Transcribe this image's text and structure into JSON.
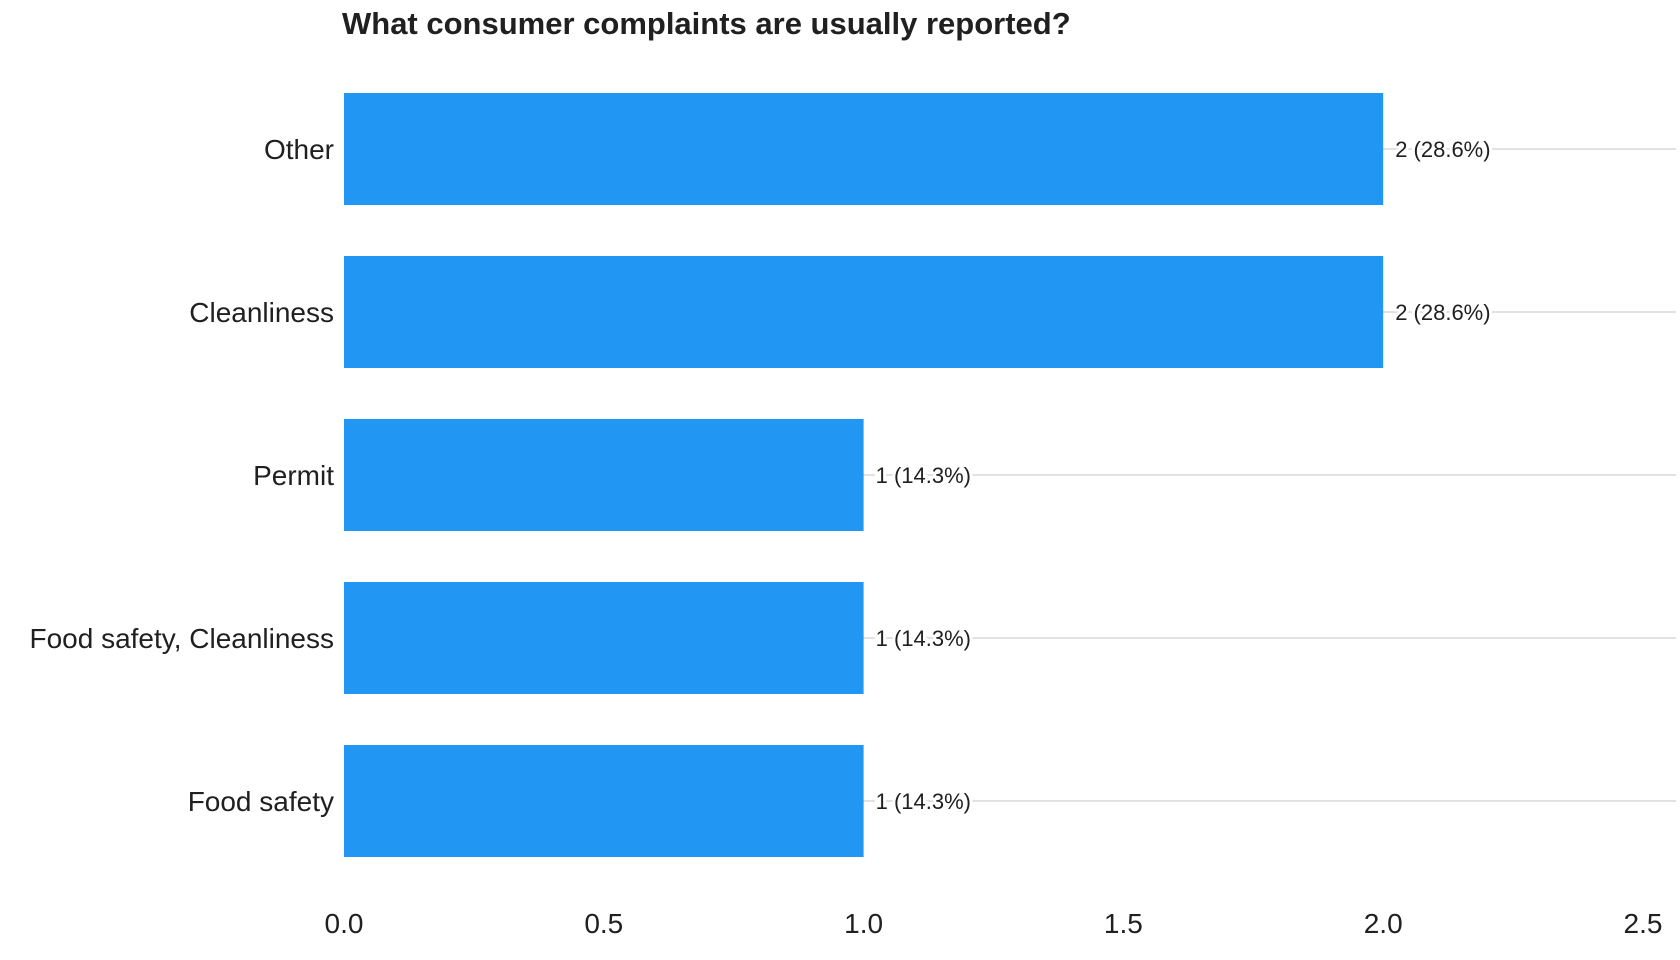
{
  "chart_data": {
    "type": "bar",
    "orientation": "horizontal",
    "title": "What consumer complaints are usually reported?",
    "categories": [
      "Other",
      "Cleanliness",
      "Permit",
      "Food safety, Cleanliness",
      "Food safety"
    ],
    "values": [
      2,
      2,
      1,
      1,
      1
    ],
    "data_labels": [
      "2 (28.6%)",
      "2 (28.6%)",
      "1 (14.3%)",
      "1 (14.3%)",
      "1 (14.3%)"
    ],
    "xlabel": "",
    "ylabel": "",
    "xlim": [
      0,
      2.5
    ],
    "x_ticks": [
      "0.0",
      "0.5",
      "1.0",
      "1.5",
      "2.0",
      "2.5"
    ],
    "bar_color": "#2196F3",
    "grid": true,
    "legend": "none"
  }
}
